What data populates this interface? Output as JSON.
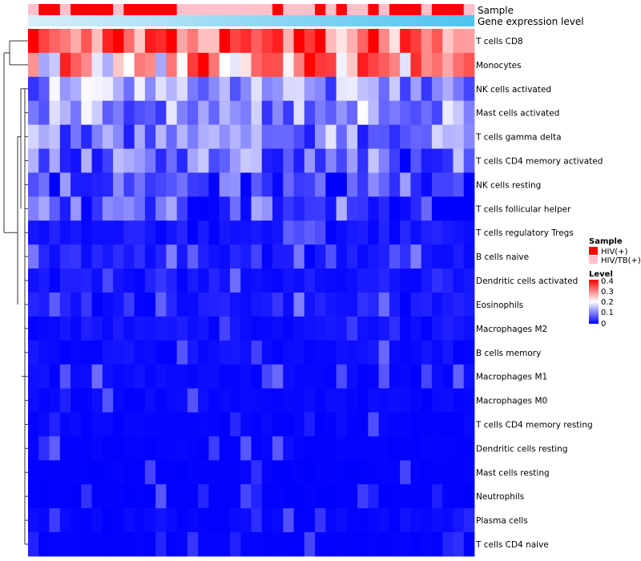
{
  "chart_data": {
    "type": "heatmap",
    "annotation_tracks": [
      "Sample",
      "Gene expression level"
    ],
    "row_labels": [
      "T cells CD8",
      "Monocytes",
      "NK cells activated",
      "Mast cells activated",
      "T cells gamma delta",
      "T cells CD4 memory activated",
      "NK cells resting",
      "T cells follicular helper",
      "T cells regulatory  Tregs",
      "B cells naive",
      "Dendritic cells activated",
      "Eosinophils",
      "Macrophages M2",
      "B cells memory",
      "Macrophages M1",
      "Macrophages M0",
      "T cells CD4 memory resting",
      "Dendritic cells resting",
      "Mast cells resting",
      "Neutrophils",
      "Plasma cells",
      "T cells CD4 naive"
    ],
    "row_base_levels": [
      0.36,
      0.27,
      0.12,
      0.12,
      0.1,
      0.08,
      0.06,
      0.06,
      0.03,
      0.04,
      0.03,
      0.03,
      0.025,
      0.02,
      0.015,
      0.012,
      0.008,
      0.006,
      0.004,
      0.002,
      0.01,
      0.005
    ],
    "n_samples": 42,
    "sample_groups": [
      "HIV/TB(+)",
      "HIV(+)",
      "HIV(+)",
      "HIV/TB(+)",
      "HIV(+)",
      "HIV(+)",
      "HIV(+)",
      "HIV(+)",
      "HIV/TB(+)",
      "HIV(+)",
      "HIV(+)",
      "HIV(+)",
      "HIV(+)",
      "HIV(+)",
      "HIV/TB(+)",
      "HIV/TB(+)",
      "HIV/TB(+)",
      "HIV/TB(+)",
      "HIV/TB(+)",
      "HIV/TB(+)",
      "HIV/TB(+)",
      "HIV/TB(+)",
      "HIV/TB(+)",
      "HIV(+)",
      "HIV/TB(+)",
      "HIV/TB(+)",
      "HIV/TB(+)",
      "HIV(+)",
      "HIV/TB(+)",
      "HIV(+)",
      "HIV/TB(+)",
      "HIV/TB(+)",
      "HIV(+)",
      "HIV/TB(+)",
      "HIV(+)",
      "HIV(+)",
      "HIV(+)",
      "HIV/TB(+)",
      "HIV(+)",
      "HIV(+)",
      "HIV(+)",
      "HIV/TB(+)"
    ],
    "legend": {
      "sample_title": "Sample",
      "sample_entries": [
        {
          "label": "HIV(+)",
          "color": "#ff0000"
        },
        {
          "label": "HIV/TB(+)",
          "color": "#ffc0cb"
        }
      ],
      "level_title": "Level",
      "level_ticks": [
        "0.4",
        "0.3",
        "0.2",
        "0.1",
        "0"
      ],
      "level_range": [
        0,
        0.4
      ]
    },
    "gene_expression_gradient": [
      "#d8eef8",
      "#4ec3ee"
    ],
    "color_scale": [
      "#0000ff",
      "#ffffff",
      "#ff0000"
    ],
    "position": "legend right"
  }
}
